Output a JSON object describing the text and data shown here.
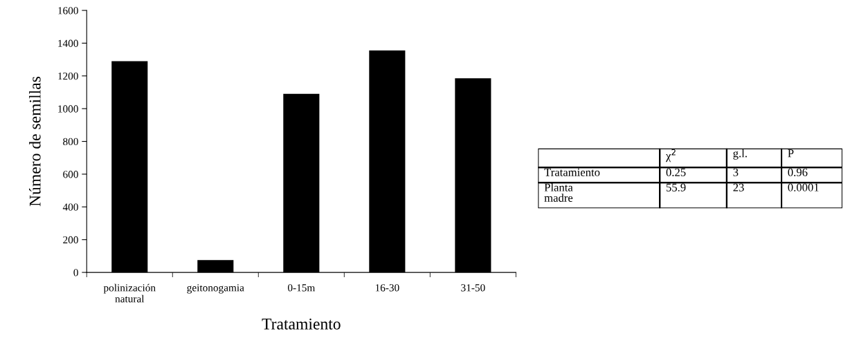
{
  "chart_data": {
    "type": "bar",
    "categories": [
      "polinización\nnatural",
      "geitonogamia",
      "0-15m",
      "16-30",
      "31-50"
    ],
    "values": [
      1290,
      75,
      1090,
      1355,
      1185
    ],
    "color": "#000000",
    "xlabel": "Tratamiento",
    "ylabel": "Número de semillas",
    "ylim": [
      0,
      1600
    ],
    "yticks": [
      0,
      200,
      400,
      600,
      800,
      1000,
      1200,
      1400,
      1600
    ],
    "grid": false,
    "annotations": [
      "χ$^{2}$",
      "g.l.",
      "P",
      "Tratamiento",
      "0.25",
      "3",
      "0.96",
      "Planta\nmadre",
      "55.9",
      "23",
      "0.0001"
    ]
  }
}
